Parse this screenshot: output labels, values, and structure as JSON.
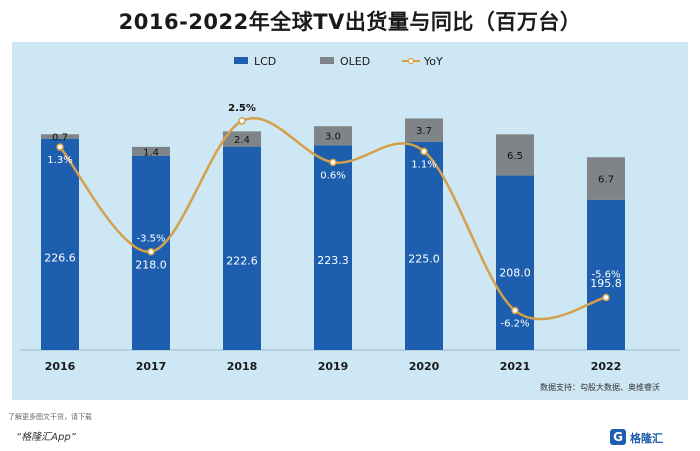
{
  "chart_data": {
    "type": "bar",
    "title": "2016-2022年全球TV出货量与同比（百万台）",
    "categories": [
      "2016",
      "2017",
      "2018",
      "2019",
      "2020",
      "2021",
      "2022"
    ],
    "series": [
      {
        "name": "LCD",
        "values": [
          226.6,
          218.0,
          222.6,
          223.3,
          225.0,
          208.0,
          195.8
        ],
        "color": "#1d5fae"
      },
      {
        "name": "OLED",
        "values": [
          0.7,
          1.4,
          2.4,
          3.0,
          3.7,
          6.5,
          6.7
        ],
        "color": "#7f8487"
      },
      {
        "name": "YoY",
        "values": [
          1.3,
          -3.5,
          2.5,
          0.6,
          1.1,
          -6.2,
          -5.6
        ],
        "color": "#d4a04a",
        "unit": "%"
      }
    ],
    "stacked": true,
    "legend_position": "top-center"
  },
  "source": "数据支持：勾股大数据、奥维睿沃",
  "footer_note": "了解更多图文干货，请下载",
  "footer_app": "“格隆汇App”",
  "logo": {
    "mark": "G",
    "text": "格隆汇"
  }
}
